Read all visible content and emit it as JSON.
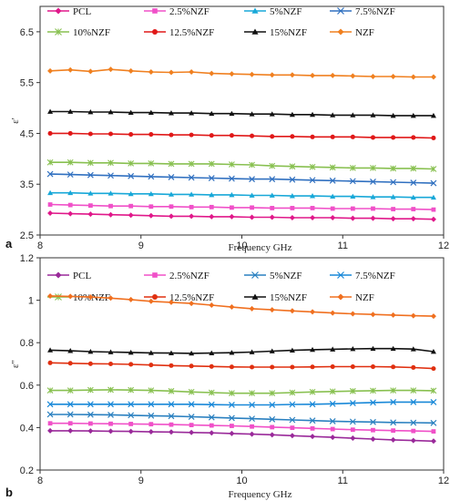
{
  "chart_data": [
    {
      "type": "line",
      "panel_label": "a",
      "xlabel": "Frequency GHz",
      "ylabel": "ε'",
      "xlim": [
        8,
        12
      ],
      "ylim": [
        2.5,
        7.0
      ],
      "x_ticks": [
        "8",
        "9",
        "10",
        "11",
        "12"
      ],
      "y_ticks": [
        "2.5",
        "3.5",
        "4.5",
        "5.5",
        "6.5"
      ],
      "x": [
        8.1,
        8.3,
        8.5,
        8.7,
        8.9,
        9.1,
        9.3,
        9.5,
        9.7,
        9.9,
        10.1,
        10.3,
        10.5,
        10.7,
        10.9,
        11.1,
        11.3,
        11.5,
        11.7,
        11.9
      ],
      "legend_position": "top",
      "series": [
        {
          "name": "PCL",
          "color": "#e0188a",
          "marker": "diamond",
          "values": [
            2.93,
            2.92,
            2.91,
            2.9,
            2.89,
            2.88,
            2.87,
            2.87,
            2.86,
            2.86,
            2.85,
            2.85,
            2.84,
            2.84,
            2.84,
            2.83,
            2.83,
            2.82,
            2.82,
            2.81
          ]
        },
        {
          "name": "2.5%NZF",
          "color": "#f050c8",
          "marker": "square",
          "values": [
            3.1,
            3.09,
            3.08,
            3.07,
            3.07,
            3.06,
            3.06,
            3.05,
            3.05,
            3.04,
            3.04,
            3.03,
            3.03,
            3.03,
            3.02,
            3.02,
            3.02,
            3.01,
            3.01,
            3.0
          ]
        },
        {
          "name": "5%NZF",
          "color": "#18a8d8",
          "marker": "triangle",
          "values": [
            3.33,
            3.33,
            3.32,
            3.32,
            3.31,
            3.31,
            3.3,
            3.3,
            3.29,
            3.29,
            3.28,
            3.28,
            3.27,
            3.27,
            3.26,
            3.26,
            3.25,
            3.25,
            3.24,
            3.24
          ]
        },
        {
          "name": "7.5%NZF",
          "color": "#3070c0",
          "marker": "x",
          "values": [
            3.7,
            3.69,
            3.68,
            3.67,
            3.66,
            3.65,
            3.64,
            3.63,
            3.62,
            3.61,
            3.6,
            3.6,
            3.59,
            3.58,
            3.57,
            3.56,
            3.55,
            3.54,
            3.53,
            3.52
          ]
        },
        {
          "name": "10%NZF",
          "color": "#88c050",
          "marker": "asterisk",
          "values": [
            3.93,
            3.93,
            3.92,
            3.92,
            3.91,
            3.91,
            3.9,
            3.9,
            3.9,
            3.89,
            3.88,
            3.86,
            3.85,
            3.84,
            3.83,
            3.82,
            3.82,
            3.81,
            3.81,
            3.8
          ]
        },
        {
          "name": "12.5%NZF",
          "color": "#e01818",
          "marker": "circle",
          "values": [
            4.5,
            4.5,
            4.49,
            4.49,
            4.48,
            4.48,
            4.47,
            4.47,
            4.46,
            4.46,
            4.45,
            4.44,
            4.44,
            4.43,
            4.43,
            4.43,
            4.42,
            4.42,
            4.42,
            4.41
          ]
        },
        {
          "name": "15%NZF",
          "color": "#111111",
          "marker": "triangle",
          "values": [
            4.93,
            4.93,
            4.92,
            4.92,
            4.91,
            4.91,
            4.9,
            4.9,
            4.89,
            4.89,
            4.88,
            4.88,
            4.87,
            4.87,
            4.86,
            4.86,
            4.86,
            4.85,
            4.85,
            4.85
          ]
        },
        {
          "name": "NZF",
          "color": "#f08020",
          "marker": "diamond",
          "values": [
            5.73,
            5.75,
            5.72,
            5.76,
            5.73,
            5.71,
            5.7,
            5.71,
            5.68,
            5.67,
            5.66,
            5.65,
            5.65,
            5.64,
            5.64,
            5.63,
            5.62,
            5.62,
            5.61,
            5.61
          ]
        }
      ]
    },
    {
      "type": "line",
      "panel_label": "b",
      "xlabel": "Frequency GHz",
      "ylabel": "ε\"",
      "xlim": [
        8,
        12
      ],
      "ylim": [
        0.2,
        1.2
      ],
      "x_ticks": [
        "8",
        "9",
        "10",
        "11",
        "12"
      ],
      "y_ticks": [
        "0.2",
        "0.4",
        "0.6",
        "0.8",
        "1",
        "1.2"
      ],
      "x": [
        8.1,
        8.3,
        8.5,
        8.7,
        8.9,
        9.1,
        9.3,
        9.5,
        9.7,
        9.9,
        10.1,
        10.3,
        10.5,
        10.7,
        10.9,
        11.1,
        11.3,
        11.5,
        11.7,
        11.9
      ],
      "legend_position": "top",
      "series": [
        {
          "name": "PCL",
          "color": "#9a2a9a",
          "marker": "diamond",
          "values": [
            0.385,
            0.385,
            0.384,
            0.383,
            0.382,
            0.38,
            0.379,
            0.377,
            0.375,
            0.372,
            0.369,
            0.366,
            0.362,
            0.358,
            0.354,
            0.35,
            0.346,
            0.342,
            0.339,
            0.336
          ]
        },
        {
          "name": "2.5%NZF",
          "color": "#f050c8",
          "marker": "square",
          "values": [
            0.42,
            0.42,
            0.419,
            0.418,
            0.417,
            0.416,
            0.414,
            0.412,
            0.41,
            0.408,
            0.405,
            0.402,
            0.399,
            0.396,
            0.393,
            0.39,
            0.388,
            0.386,
            0.384,
            0.382
          ]
        },
        {
          "name": "5%NZF",
          "color": "#2a80c0",
          "marker": "x",
          "values": [
            0.462,
            0.462,
            0.461,
            0.46,
            0.458,
            0.456,
            0.454,
            0.451,
            0.448,
            0.445,
            0.442,
            0.439,
            0.436,
            0.433,
            0.43,
            0.428,
            0.426,
            0.424,
            0.423,
            0.422
          ]
        },
        {
          "name": "7.5%NZF",
          "color": "#1888d8",
          "marker": "x",
          "values": [
            0.51,
            0.51,
            0.51,
            0.51,
            0.51,
            0.51,
            0.51,
            0.51,
            0.508,
            0.507,
            0.507,
            0.507,
            0.509,
            0.51,
            0.512,
            0.515,
            0.518,
            0.52,
            0.52,
            0.52
          ]
        },
        {
          "name": "10%NZF",
          "color": "#88c050",
          "marker": "asterisk",
          "values": [
            0.575,
            0.575,
            0.577,
            0.578,
            0.577,
            0.575,
            0.572,
            0.568,
            0.565,
            0.562,
            0.562,
            0.562,
            0.565,
            0.568,
            0.57,
            0.572,
            0.574,
            0.575,
            0.575,
            0.574
          ]
        },
        {
          "name": "12.5%NZF",
          "color": "#e03010",
          "marker": "circle",
          "values": [
            0.705,
            0.703,
            0.701,
            0.7,
            0.698,
            0.695,
            0.692,
            0.69,
            0.688,
            0.686,
            0.685,
            0.685,
            0.685,
            0.686,
            0.687,
            0.687,
            0.687,
            0.686,
            0.683,
            0.678
          ]
        },
        {
          "name": "15%NZF",
          "color": "#111111",
          "marker": "triangle",
          "values": [
            0.765,
            0.762,
            0.758,
            0.756,
            0.754,
            0.752,
            0.751,
            0.75,
            0.751,
            0.753,
            0.756,
            0.76,
            0.764,
            0.767,
            0.769,
            0.771,
            0.772,
            0.772,
            0.77,
            0.758
          ]
        },
        {
          "name": "NZF",
          "color": "#f07020",
          "marker": "diamond",
          "values": [
            1.02,
            1.018,
            1.015,
            1.01,
            1.003,
            0.995,
            0.99,
            0.985,
            0.977,
            0.968,
            0.96,
            0.955,
            0.95,
            0.945,
            0.94,
            0.936,
            0.933,
            0.93,
            0.927,
            0.925
          ]
        }
      ]
    }
  ]
}
